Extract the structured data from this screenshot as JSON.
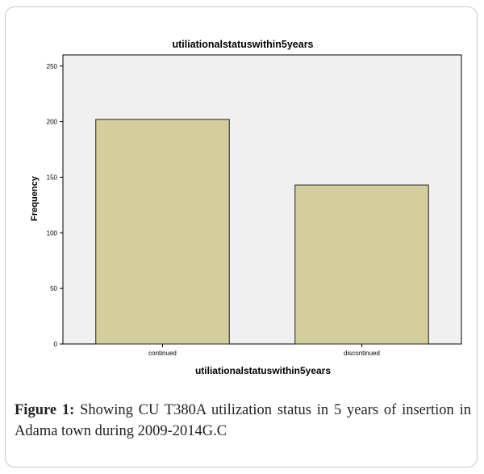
{
  "chart_data": {
    "type": "bar",
    "title": "utiliationalstatuswithin5years",
    "xlabel": "utiliationalstatuswithin5years",
    "ylabel": "Frequency",
    "categories": [
      "continued",
      "discontinued"
    ],
    "values": [
      202,
      143
    ],
    "ylim": [
      0,
      260
    ],
    "yticks": [
      0,
      50,
      100,
      150,
      200,
      250
    ],
    "grid": false,
    "colors": {
      "bar": "#d3ce9b",
      "plot_background": "#f0f0f0",
      "bar_edge": "#222222"
    }
  },
  "caption": {
    "label": "Figure 1:",
    "text": "Showing CU T380A utilization status in 5 years of insertion in Adama town during 2009-2014G.C"
  }
}
